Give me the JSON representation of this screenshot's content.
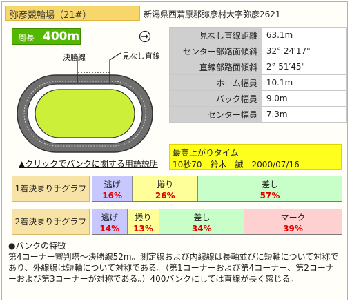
{
  "title": "弥彦競輪場（21#）",
  "address": "新潟県西蒲原郡弥彦村大字弥彦2621",
  "track": {
    "length_label": "周長",
    "length_value": "400m",
    "finish_line_label": "決勝線",
    "apparent_straight_label": "見なし直線",
    "direction_icon": "arrow-right-circle-icon"
  },
  "terms_link": "▲クリックでバンクに関する用語説明",
  "info": [
    {
      "label": "見なし直線距離",
      "value": "63.1m"
    },
    {
      "label": "センター部路面傾斜",
      "value": "32° 24′17\""
    },
    {
      "label": "直線部路面傾斜",
      "value": "2° 51′45\""
    },
    {
      "label": "ホーム幅員",
      "value": "10.1m"
    },
    {
      "label": "バック幅員",
      "value": "9.0m"
    },
    {
      "label": "センター幅員",
      "value": "7.3m"
    }
  ],
  "fastest": {
    "title": "最高上がりタイム",
    "detail": "10秒70　鈴木　誠　2000/07/16"
  },
  "charts": [
    {
      "label": "1着決まり手グラフ",
      "segments": [
        {
          "name": "逃げ",
          "percent": "16%",
          "value": 16,
          "color": "#c8c8ff"
        },
        {
          "name": "捲り",
          "percent": "26%",
          "value": 26,
          "color": "#ffff9a"
        },
        {
          "name": "差し",
          "percent": "57%",
          "value": 57,
          "color": "#c8ffc8"
        }
      ]
    },
    {
      "label": "2着決まり手グラフ",
      "segments": [
        {
          "name": "逃げ",
          "percent": "14%",
          "value": 14,
          "color": "#c8c8ff"
        },
        {
          "name": "捲り",
          "percent": "13%",
          "value": 13,
          "color": "#ffff9a"
        },
        {
          "name": "差し",
          "percent": "34%",
          "value": 34,
          "color": "#c8ffc8"
        },
        {
          "name": "マーク",
          "percent": "39%",
          "value": 39,
          "color": "#ffd0d0"
        }
      ]
    }
  ],
  "notes": {
    "heading": "●バンクの特徴",
    "lines": [
      "第4コーナー審判塔～決勝線52m。測定線および内線線は長軸並びに短軸について対称で",
      "あり、外線線は短軸について対称である。（第1コーナーおよび第4コーナー、第2コーナ",
      "ーおよび第3コーナーが対称である。）400バンクにしては直線が長く感じる。"
    ]
  }
}
